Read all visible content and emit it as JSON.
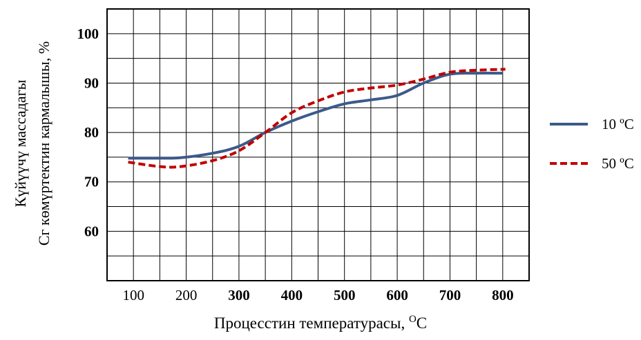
{
  "chart_data": {
    "type": "line",
    "xlabel": "Процесстин температурасы, ",
    "xlabel_unit_sup": "O",
    "xlabel_unit": "C",
    "ylabel_line1": "Күйүүчү массадагы",
    "ylabel_line2": "Cг көмүртектин кармалышы, %",
    "x_ticks": [
      {
        "value": 100,
        "label": "100",
        "bold": false
      },
      {
        "value": 200,
        "label": "200",
        "bold": false
      },
      {
        "value": 300,
        "label": "300",
        "bold": true
      },
      {
        "value": 400,
        "label": "400",
        "bold": true
      },
      {
        "value": 500,
        "label": "500",
        "bold": true
      },
      {
        "value": 600,
        "label": "600",
        "bold": true
      },
      {
        "value": 700,
        "label": "700",
        "bold": true
      },
      {
        "value": 800,
        "label": "800",
        "bold": true
      }
    ],
    "y_ticks": [
      {
        "value": 60,
        "label": "60"
      },
      {
        "value": 70,
        "label": "70"
      },
      {
        "value": 80,
        "label": "80"
      },
      {
        "value": 90,
        "label": "90"
      },
      {
        "value": 100,
        "label": "100"
      }
    ],
    "xlim": [
      50,
      850
    ],
    "ylim": [
      50,
      105
    ],
    "grid": true,
    "legend_position": "right",
    "series": [
      {
        "name": "10 ºC",
        "color": "#3c5a8a",
        "dash": "solid",
        "x": [
          90,
          150,
          190,
          250,
          300,
          350,
          400,
          450,
          500,
          550,
          600,
          650,
          700,
          750,
          800
        ],
        "y": [
          74.8,
          74.8,
          74.9,
          75.8,
          77.2,
          80.0,
          82.3,
          84.2,
          85.8,
          86.6,
          87.5,
          90.0,
          91.8,
          92.0,
          92.0
        ]
      },
      {
        "name": "50 ºC",
        "color": "#c00000",
        "dash": "dashed",
        "x": [
          90,
          150,
          190,
          250,
          300,
          350,
          400,
          450,
          500,
          550,
          600,
          650,
          700,
          750,
          805
        ],
        "y": [
          74.0,
          73.1,
          73.1,
          74.3,
          76.3,
          80.0,
          84.0,
          86.4,
          88.2,
          89.0,
          89.6,
          90.8,
          92.2,
          92.6,
          92.8
        ]
      }
    ]
  }
}
